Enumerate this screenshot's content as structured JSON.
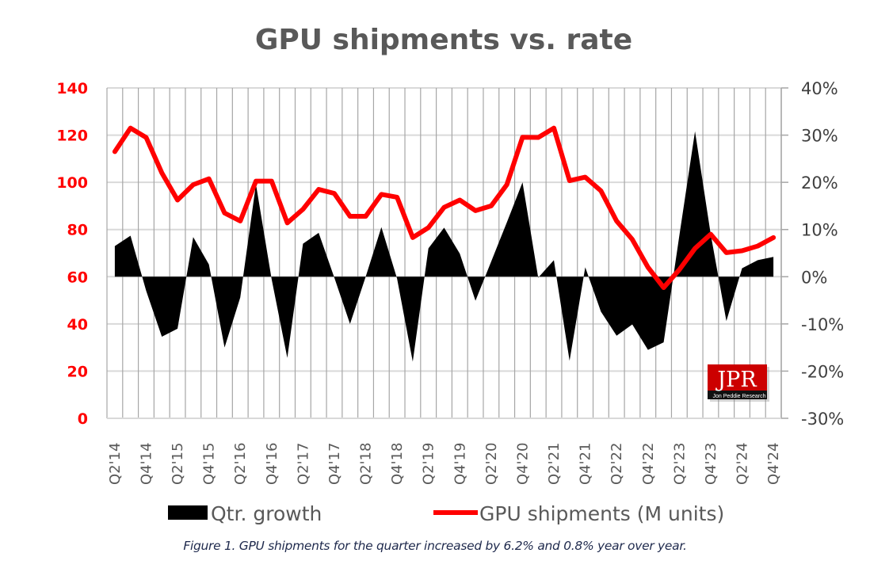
{
  "chart_data": {
    "type": "area+line",
    "title": "GPU shipments vs. rate",
    "caption": "Figure 1. GPU shipments for the quarter increased by 6.2% and 0.8% year over year.",
    "categories": [
      "Q2'14",
      "Q3'14",
      "Q4'14",
      "Q1'15",
      "Q2'15",
      "Q3'15",
      "Q4'15",
      "Q1'16",
      "Q2'16",
      "Q3'16",
      "Q4'16",
      "Q1'17",
      "Q2'17",
      "Q3'17",
      "Q4'17",
      "Q1'18",
      "Q2'18",
      "Q3'18",
      "Q4'18",
      "Q1'19",
      "Q2'19",
      "Q3'19",
      "Q4'19",
      "Q1'20",
      "Q2'20",
      "Q3'20",
      "Q4'20",
      "Q1'21",
      "Q2'21",
      "Q3'21",
      "Q4'21",
      "Q1'22",
      "Q2'22",
      "Q3'22",
      "Q4'22",
      "Q1'23",
      "Q2'23",
      "Q3'23",
      "Q4'23",
      "Q1'24",
      "Q2'24",
      "Q3'24",
      "Q4'24"
    ],
    "x_tick_labels": [
      "Q2'14",
      "Q4'14",
      "Q2'15",
      "Q4'15",
      "Q2'16",
      "Q4'16",
      "Q2'17",
      "Q4'17",
      "Q2'18",
      "Q4'18",
      "Q2'19",
      "Q4'19",
      "Q2'20",
      "Q4'20",
      "Q2'21",
      "Q4'21",
      "Q2'22",
      "Q4'22",
      "Q2'23",
      "Q4'23",
      "Q2'24",
      "Q4'24"
    ],
    "series": [
      {
        "name": "Qtr. growth",
        "type": "area",
        "axis": "right",
        "unit": "%",
        "color": "#000000",
        "values": [
          6.5,
          8.7,
          -3.0,
          -12.7,
          -11.0,
          8.4,
          2.6,
          -15.0,
          -4.4,
          19.6,
          -0.5,
          -17.2,
          7.0,
          9.3,
          -0.2,
          -10.0,
          0.0,
          10.5,
          -0.4,
          -18.0,
          6.0,
          10.4,
          4.9,
          -5.1,
          3.2,
          11.5,
          20.0,
          -0.2,
          3.5,
          -17.8,
          2.0,
          -7.4,
          -12.5,
          -10.1,
          -15.5,
          -13.9,
          8.7,
          30.8,
          9.0,
          -9.4,
          1.8,
          3.5,
          4.2
        ]
      },
      {
        "name": "GPU shipments (M units)",
        "type": "line",
        "axis": "left",
        "unit": "M units",
        "color": "#ff0000",
        "values": [
          113,
          123,
          119,
          104,
          92.5,
          99,
          101.5,
          87,
          83.6,
          100.5,
          100.5,
          82.8,
          88.6,
          97,
          95.3,
          85.6,
          85.6,
          94.9,
          93.7,
          76.6,
          80.8,
          89.4,
          92.5,
          88,
          90,
          99,
          119.1,
          119,
          123,
          100.7,
          102.2,
          96.4,
          83.6,
          75.8,
          64,
          55.4,
          63,
          72,
          78,
          70.2,
          71,
          73,
          76.6
        ]
      }
    ],
    "y_left": {
      "range": [
        0,
        140
      ],
      "ticks": [
        "0",
        "20",
        "40",
        "60",
        "80",
        "100",
        "120",
        "140"
      ],
      "color": "#ff0000"
    },
    "y_right": {
      "range": [
        -30,
        40
      ],
      "ticks": [
        "-30%",
        "-20%",
        "-10%",
        "0%",
        "10%",
        "20%",
        "30%",
        "40%"
      ]
    },
    "xlabel": "",
    "ylabel": "",
    "grid": true,
    "legend": {
      "placement": "bottom",
      "entries": [
        "Qtr. growth",
        "GPU shipments (M units)"
      ]
    },
    "watermark": {
      "main": "JPR",
      "sub": "Jon Peddie Research",
      "color": "#cc0000"
    }
  }
}
